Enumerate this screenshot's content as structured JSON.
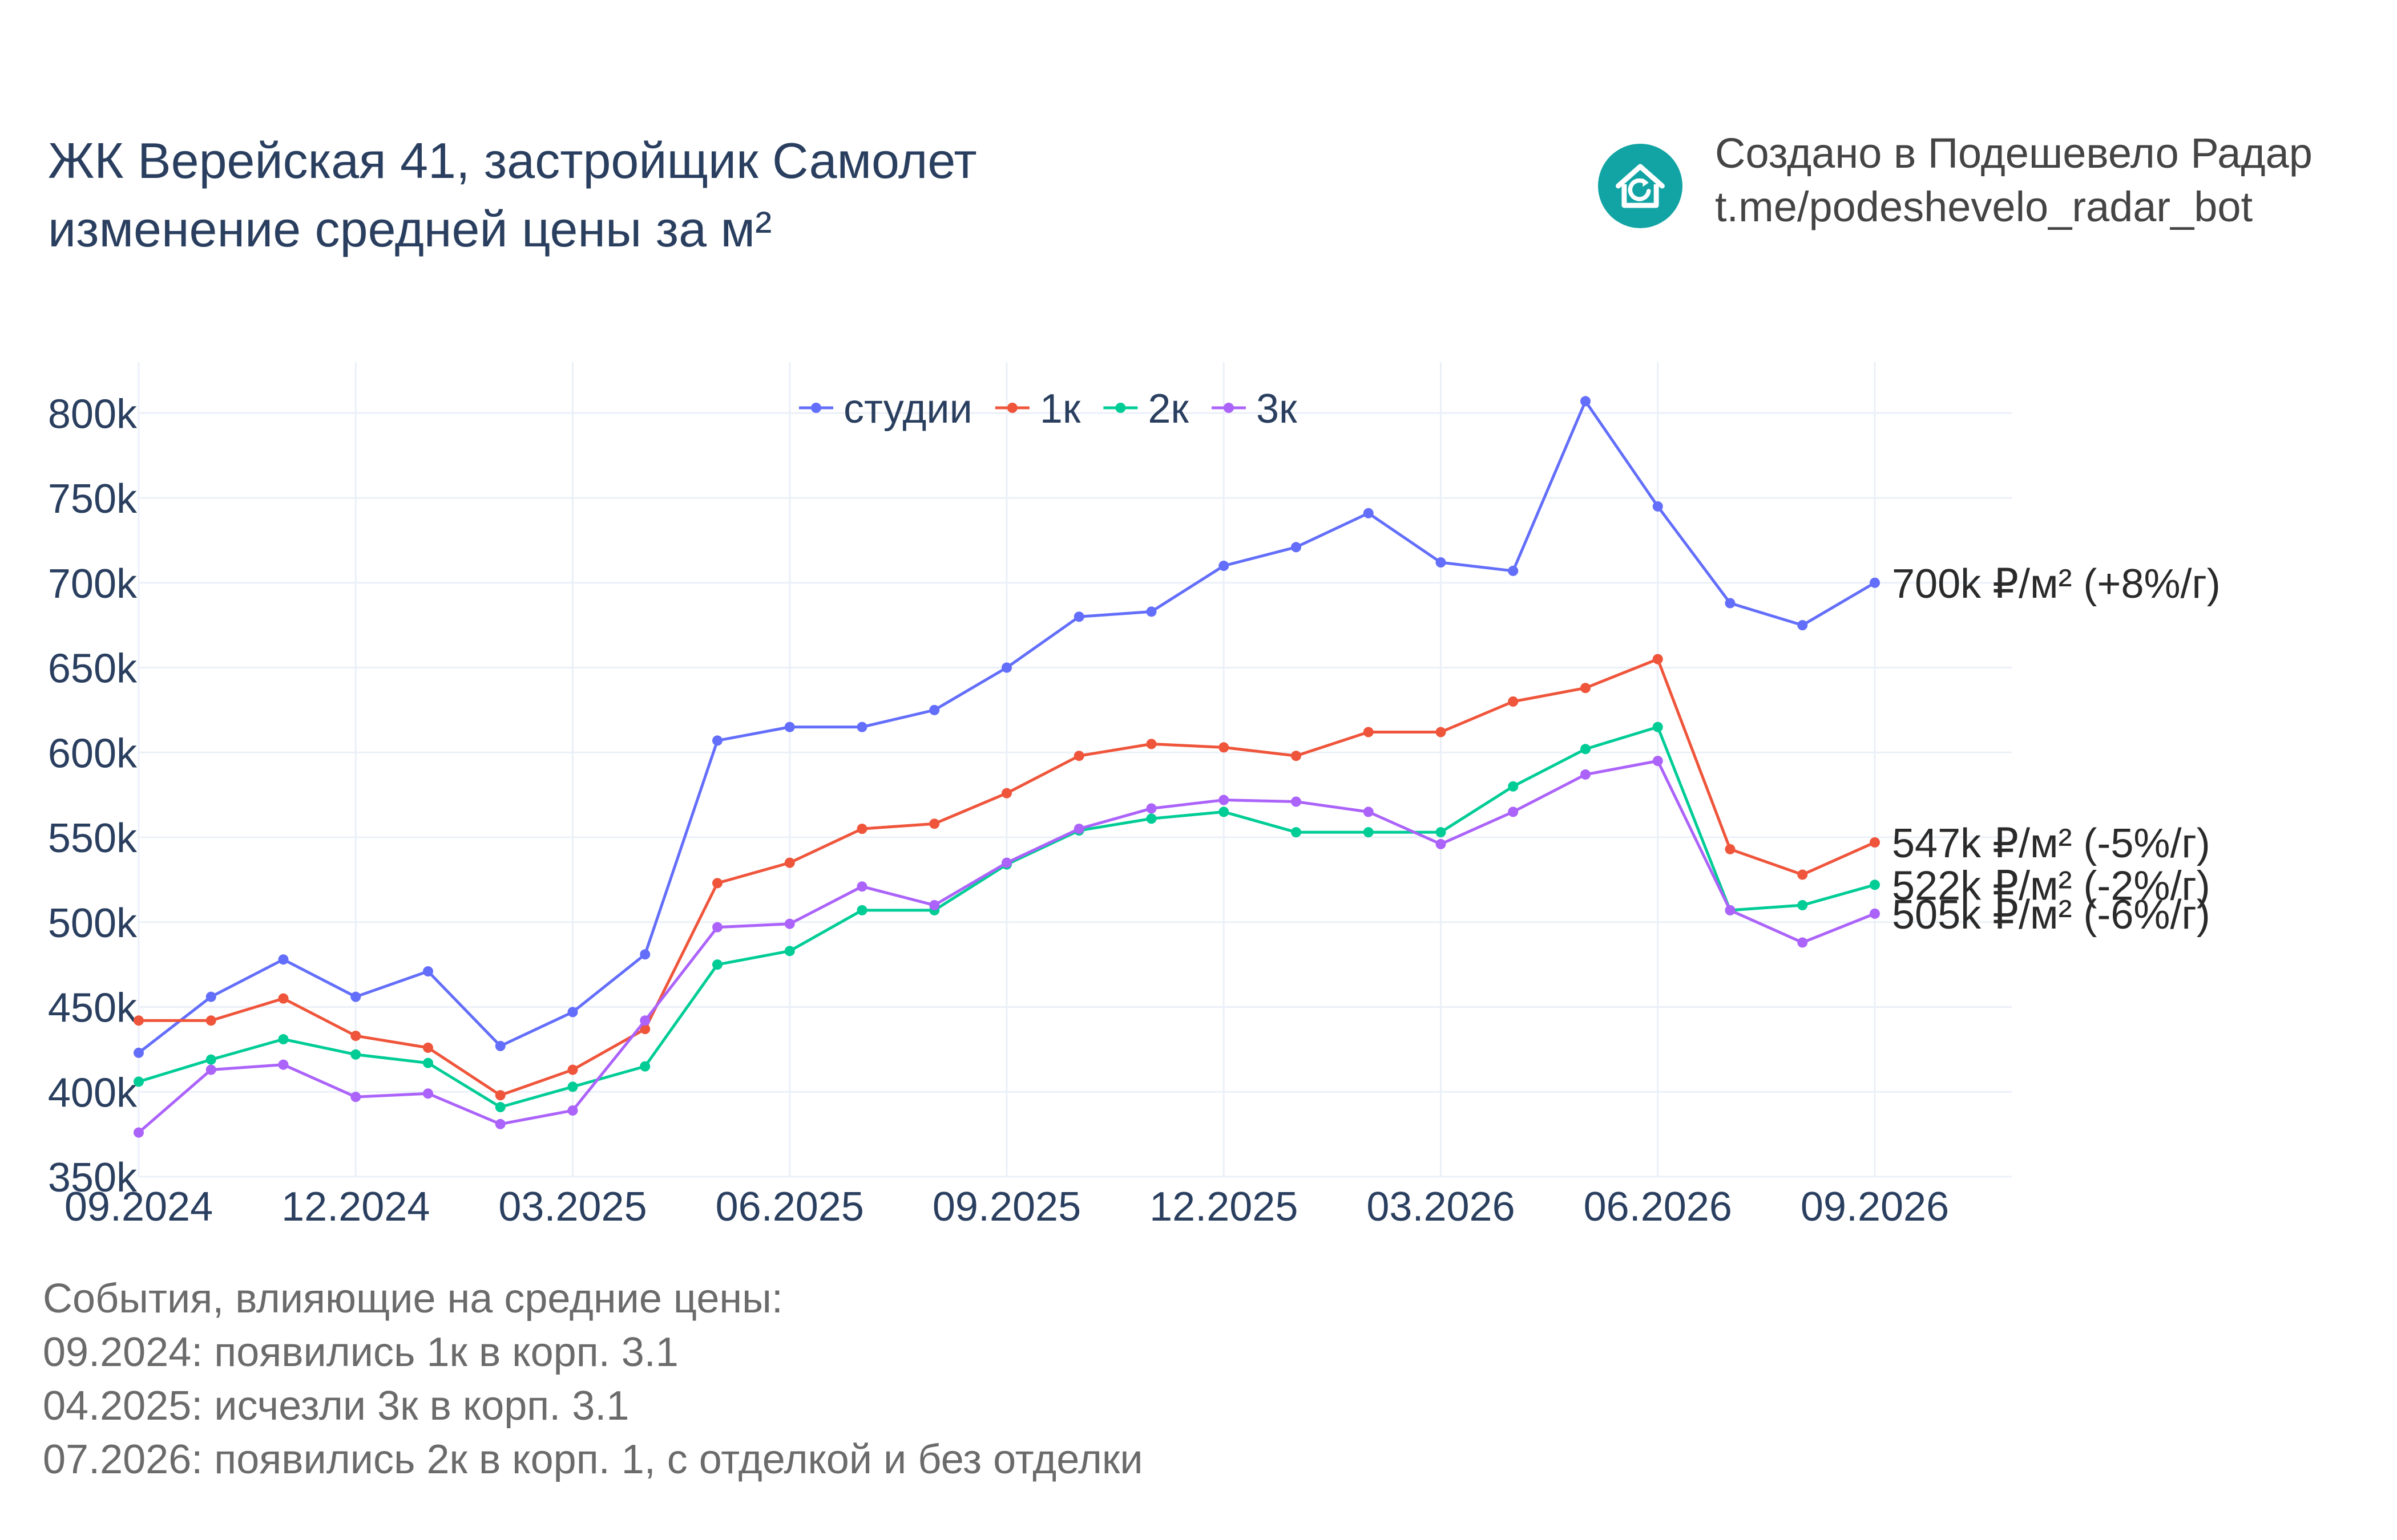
{
  "title": {
    "line1": "ЖК Верейская 41, застройщик Самолет",
    "line2": "изменение средней цены за м²"
  },
  "brand": {
    "icon": "house-refresh-icon",
    "color": "#12a4a4",
    "line1": "Создано в Подешевело Радар",
    "line2": "t.me/podeshevelo_radar_bot"
  },
  "events": {
    "heading": "События, влияющие на средние цены:",
    "items": [
      "09.2024: появились 1к в корп. 3.1",
      "04.2025: исчезли 3к в корп. 3.1",
      "07.2026: появились 2к в корп. 1, с отделкой и без отделки"
    ]
  },
  "chart_data": {
    "type": "line",
    "x": [
      "09.2024",
      "10.2024",
      "11.2024",
      "12.2024",
      "01.2025",
      "02.2025",
      "03.2025",
      "04.2025",
      "05.2025",
      "06.2025",
      "07.2025",
      "08.2025",
      "09.2025",
      "10.2025",
      "11.2025",
      "12.2025",
      "01.2026",
      "02.2026",
      "03.2026",
      "04.2026",
      "05.2026",
      "06.2026",
      "07.2026",
      "08.2026",
      "09.2026"
    ],
    "x_ticks": [
      "09.2024",
      "12.2024",
      "03.2025",
      "06.2025",
      "09.2025",
      "12.2025",
      "03.2026",
      "06.2026",
      "09.2026"
    ],
    "y_ticks": [
      "350k",
      "400k",
      "450k",
      "500k",
      "550k",
      "600k",
      "650k",
      "700k",
      "750k",
      "800k"
    ],
    "ylim": [
      350000,
      830000
    ],
    "grid": true,
    "legend": "top-center",
    "series": [
      {
        "name": "студии",
        "color": "#636efa",
        "values": [
          423000,
          456000,
          478000,
          456000,
          471000,
          427000,
          447000,
          481000,
          607000,
          615000,
          615000,
          625000,
          650000,
          680000,
          683000,
          710000,
          721000,
          741000,
          712000,
          707000,
          807000,
          745000,
          688000,
          675000,
          700000
        ],
        "end_label": "700k ₽/м² (+8%/г)"
      },
      {
        "name": "1к",
        "color": "#ef553b",
        "values": [
          442000,
          442000,
          455000,
          433000,
          426000,
          398000,
          413000,
          437000,
          523000,
          535000,
          555000,
          558000,
          576000,
          598000,
          605000,
          603000,
          598000,
          612000,
          612000,
          630000,
          638000,
          655000,
          543000,
          528000,
          547000
        ],
        "end_label": "547k ₽/м² (-5%/г)"
      },
      {
        "name": "2к",
        "color": "#00cc96",
        "values": [
          406000,
          419000,
          431000,
          422000,
          417000,
          391000,
          403000,
          415000,
          475000,
          483000,
          507000,
          507000,
          534000,
          554000,
          561000,
          565000,
          553000,
          553000,
          553000,
          580000,
          602000,
          615000,
          507000,
          510000,
          522000
        ],
        "end_label": "522k ₽/м² (-2%/г)"
      },
      {
        "name": "3к",
        "color": "#ab63fa",
        "values": [
          376000,
          413000,
          416000,
          397000,
          399000,
          381000,
          389000,
          442000,
          497000,
          499000,
          521000,
          510000,
          535000,
          555000,
          567000,
          572000,
          571000,
          565000,
          546000,
          565000,
          587000,
          595000,
          507000,
          488000,
          505000
        ],
        "end_label": "505k ₽/м² (-6%/г)"
      }
    ]
  }
}
